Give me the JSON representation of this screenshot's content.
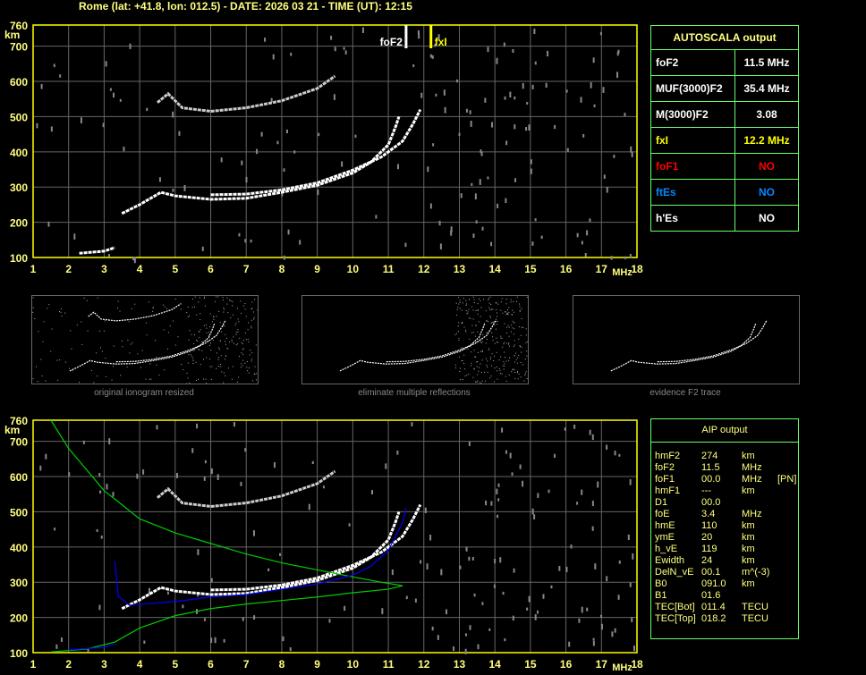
{
  "header": {
    "title": "Rome (lat: +41.8, lon: 012.5) - DATE: 2026 03 21 - TIME (UT): 12:15"
  },
  "autoscala": {
    "title": "AUTOSCALA output",
    "rows": [
      {
        "key": "foF2",
        "value": "11.5 MHz",
        "color": "#ffffff"
      },
      {
        "key": "MUF(3000)F2",
        "value": "35.4 MHz",
        "color": "#ffffff"
      },
      {
        "key": "M(3000)F2",
        "value": "3.08",
        "color": "#ffffff"
      },
      {
        "key": "fxI",
        "value": "12.2 MHz",
        "color": "#ffff00"
      },
      {
        "key": "foF1",
        "value": "NO",
        "color": "#ff0000"
      },
      {
        "key": "ftEs",
        "value": "NO",
        "color": "#0088ff"
      },
      {
        "key": "h'Es",
        "value": "NO",
        "color": "#ffffff"
      }
    ]
  },
  "aip": {
    "title": "AIP output",
    "rows": [
      [
        "hmF2",
        "274",
        "km",
        ""
      ],
      [
        "foF2",
        "11.5",
        "MHz",
        ""
      ],
      [
        "foF1",
        "00.0",
        "MHz",
        "[PN]"
      ],
      [
        "hmF1",
        "---",
        "km",
        ""
      ],
      [
        "D1",
        "00.0",
        "",
        ""
      ],
      [
        "foE",
        "3.4",
        "MHz",
        ""
      ],
      [
        "hmE",
        "110",
        "km",
        ""
      ],
      [
        "ymE",
        "20",
        "km",
        ""
      ],
      [
        "h_vE",
        "119",
        "km",
        ""
      ],
      [
        "Ewidth",
        "24",
        "km",
        ""
      ],
      [
        "DelN_vE",
        "00.1",
        "m^(-3)",
        ""
      ],
      [
        "B0",
        "091.0",
        "km",
        ""
      ],
      [
        "B1",
        "01.6",
        "",
        ""
      ],
      [
        "TEC[Bot]",
        "011.4",
        "TECU",
        ""
      ],
      [
        "TEC[Top]",
        "018.2",
        "TECU",
        ""
      ]
    ]
  },
  "thumbnails": [
    {
      "label": "original ionogram resized"
    },
    {
      "label": "eliminate multiple reflections"
    },
    {
      "label": "evidence F2 trace"
    }
  ],
  "chart_data": [
    {
      "type": "scatter",
      "xlim": [
        1,
        18
      ],
      "ylim": [
        100,
        760
      ],
      "xunit": "MHz",
      "yunit": "km",
      "grid": true,
      "xticks": [
        1,
        2,
        3,
        4,
        5,
        6,
        7,
        8,
        9,
        10,
        11,
        12,
        13,
        14,
        15,
        16,
        17,
        18
      ],
      "yticks": [
        100,
        200,
        300,
        400,
        500,
        600,
        700,
        760
      ],
      "markers": [
        {
          "label": "foF2",
          "x": 11.5,
          "color": "#ffffff"
        },
        {
          "label": "fxI",
          "x": 12.2,
          "color": "#ffff00"
        }
      ],
      "series": [
        {
          "kind": "o-trace",
          "color": "#ffffff",
          "points": [
            [
              3.5,
              225
            ],
            [
              4,
              250
            ],
            [
              4.6,
              285
            ],
            [
              5,
              275
            ],
            [
              6,
              265
            ],
            [
              7,
              268
            ],
            [
              8,
              285
            ],
            [
              9,
              305
            ],
            [
              10,
              340
            ],
            [
              10.5,
              370
            ],
            [
              11,
              420
            ],
            [
              11.2,
              470
            ],
            [
              11.3,
              500
            ]
          ]
        },
        {
          "kind": "x-trace",
          "color": "#ffffff",
          "points": [
            [
              6,
              278
            ],
            [
              7,
              280
            ],
            [
              8,
              292
            ],
            [
              9,
              312
            ],
            [
              10,
              348
            ],
            [
              10.8,
              385
            ],
            [
              11.4,
              430
            ],
            [
              11.7,
              480
            ],
            [
              11.9,
              520
            ]
          ]
        },
        {
          "kind": "multiple",
          "color": "#cccccc",
          "points": [
            [
              4.5,
              540
            ],
            [
              4.8,
              565
            ],
            [
              5.2,
              525
            ],
            [
              6,
              515
            ],
            [
              7,
              525
            ],
            [
              8,
              545
            ],
            [
              9,
              580
            ],
            [
              9.5,
              615
            ]
          ]
        },
        {
          "kind": "e-trace",
          "color": "#ffffff",
          "points": [
            [
              2.3,
              112
            ],
            [
              3,
              118
            ],
            [
              3.3,
              128
            ]
          ]
        }
      ]
    },
    {
      "type": "scatter",
      "xlim": [
        1,
        18
      ],
      "ylim": [
        100,
        760
      ],
      "xunit": "MHz",
      "yunit": "km",
      "grid": true,
      "xticks": [
        1,
        2,
        3,
        4,
        5,
        6,
        7,
        8,
        9,
        10,
        11,
        12,
        13,
        14,
        15,
        16,
        17,
        18
      ],
      "yticks": [
        100,
        200,
        300,
        400,
        500,
        600,
        700,
        760
      ],
      "series": [
        {
          "kind": "o-trace",
          "color": "#ffffff",
          "points": [
            [
              3.5,
              225
            ],
            [
              4,
              250
            ],
            [
              4.6,
              285
            ],
            [
              5,
              275
            ],
            [
              6,
              265
            ],
            [
              7,
              268
            ],
            [
              8,
              285
            ],
            [
              9,
              305
            ],
            [
              10,
              340
            ],
            [
              10.5,
              370
            ],
            [
              11,
              420
            ],
            [
              11.2,
              470
            ],
            [
              11.3,
              500
            ]
          ]
        },
        {
          "kind": "x-trace",
          "color": "#ffffff",
          "points": [
            [
              6,
              278
            ],
            [
              7,
              280
            ],
            [
              8,
              292
            ],
            [
              9,
              312
            ],
            [
              10,
              348
            ],
            [
              10.8,
              385
            ],
            [
              11.4,
              430
            ],
            [
              11.7,
              480
            ],
            [
              11.9,
              520
            ]
          ]
        },
        {
          "kind": "multiple",
          "color": "#cccccc",
          "points": [
            [
              4.5,
              540
            ],
            [
              4.8,
              565
            ],
            [
              5.2,
              525
            ],
            [
              6,
              515
            ],
            [
              7,
              525
            ],
            [
              8,
              545
            ],
            [
              9,
              580
            ],
            [
              9.5,
              615
            ]
          ]
        },
        {
          "kind": "profile",
          "color": "#00cc00",
          "points": [
            [
              1.5,
              760
            ],
            [
              2,
              680
            ],
            [
              3,
              560
            ],
            [
              4,
              480
            ],
            [
              5,
              440
            ],
            [
              6,
              410
            ],
            [
              7,
              380
            ],
            [
              8,
              355
            ],
            [
              9,
              335
            ],
            [
              10,
              315
            ],
            [
              10.8,
              300
            ],
            [
              11.4,
              290
            ],
            [
              11,
              280
            ],
            [
              10,
              270
            ],
            [
              9,
              258
            ],
            [
              8,
              248
            ],
            [
              7,
              238
            ],
            [
              6,
              225
            ],
            [
              5,
              205
            ],
            [
              4,
              170
            ],
            [
              3.3,
              130
            ],
            [
              2.5,
              110
            ],
            [
              1.5,
              102
            ]
          ]
        },
        {
          "kind": "model-trace",
          "color": "#0000ff",
          "points": [
            [
              3.3,
              360
            ],
            [
              3.4,
              260
            ],
            [
              3.7,
              235
            ],
            [
              5,
              245
            ],
            [
              6,
              258
            ],
            [
              7,
              265
            ],
            [
              8,
              280
            ],
            [
              9,
              295
            ],
            [
              10,
              320
            ],
            [
              10.5,
              345
            ],
            [
              11,
              390
            ],
            [
              11.4,
              470
            ],
            [
              11.5,
              510
            ]
          ]
        },
        {
          "kind": "model-e",
          "color": "#0000ff",
          "points": [
            [
              2,
              108
            ],
            [
              3,
              115
            ],
            [
              3.3,
              125
            ]
          ]
        }
      ]
    }
  ]
}
